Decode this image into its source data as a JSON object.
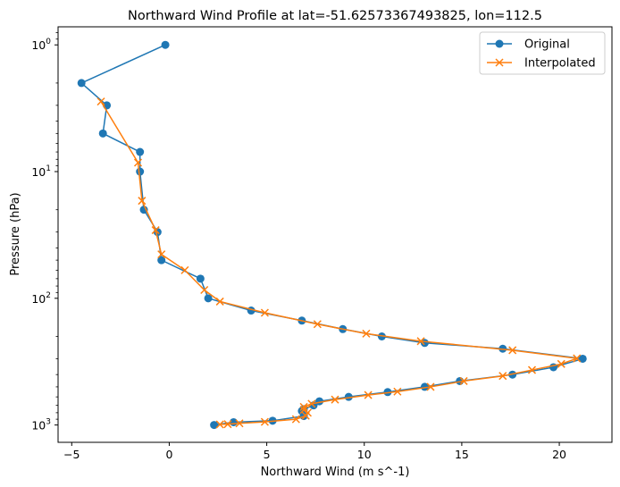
{
  "chart_data": {
    "type": "line",
    "title": "Northward Wind Profile at lat=-51.62573367493825, lon=112.5",
    "xlabel": "Northward Wind (m s^-1)",
    "ylabel": "Pressure (hPa)",
    "xlim": [
      -5.7,
      22.7
    ],
    "ylim": [
      1370,
      0.72
    ],
    "y_scale": "log",
    "y_inverted": true,
    "x_ticks": [
      -5,
      0,
      5,
      10,
      15,
      20
    ],
    "y_ticks": [
      {
        "value": 1,
        "mantissa": "10",
        "exp": "0"
      },
      {
        "value": 10,
        "mantissa": "10",
        "exp": "1"
      },
      {
        "value": 100,
        "mantissa": "10",
        "exp": "2"
      },
      {
        "value": 1000,
        "mantissa": "10",
        "exp": "3"
      }
    ],
    "legend_position": "top-right",
    "grid": false,
    "series": [
      {
        "name": "Original",
        "color": "#1f77b4",
        "marker": "circle",
        "x": [
          -0.2,
          -4.5,
          -3.2,
          -3.4,
          -1.5,
          -1.5,
          -1.3,
          -0.6,
          -0.4,
          1.6,
          2.0,
          4.2,
          6.8,
          8.9,
          10.9,
          13.1,
          17.1,
          21.2,
          19.7,
          17.6,
          14.9,
          13.1,
          11.2,
          9.2,
          7.7,
          7.4,
          6.9,
          6.8,
          6.9,
          5.3,
          3.3,
          2.3
        ],
        "y": [
          1,
          2,
          3,
          5,
          7,
          10,
          20,
          30,
          50,
          70,
          100,
          125,
          150,
          175,
          200,
          225,
          250,
          300,
          350,
          400,
          450,
          500,
          550,
          600,
          650,
          700,
          750,
          775,
          850,
          925,
          950,
          1000
        ]
      },
      {
        "name": "Interpolated",
        "color": "#ff7f0e",
        "marker": "x",
        "x": [
          -3.5,
          -1.6,
          -1.4,
          -0.7,
          -0.4,
          0.8,
          1.8,
          2.6,
          4.9,
          7.6,
          10.1,
          12.9,
          17.6,
          20.9,
          20.1,
          18.6,
          17.1,
          15.1,
          13.4,
          11.7,
          10.2,
          8.5,
          7.3,
          6.9,
          6.9,
          7.1,
          7.0,
          6.5,
          4.9,
          3.6,
          3.0,
          2.6
        ],
        "y": [
          2.8,
          8.5,
          17,
          29,
          45,
          60,
          86,
          106,
          130,
          160,
          190,
          218,
          257,
          298,
          330,
          368,
          410,
          450,
          500,
          545,
          580,
          630,
          680,
          720,
          760,
          800,
          845,
          900,
          945,
          970,
          985,
          990
        ]
      }
    ]
  }
}
